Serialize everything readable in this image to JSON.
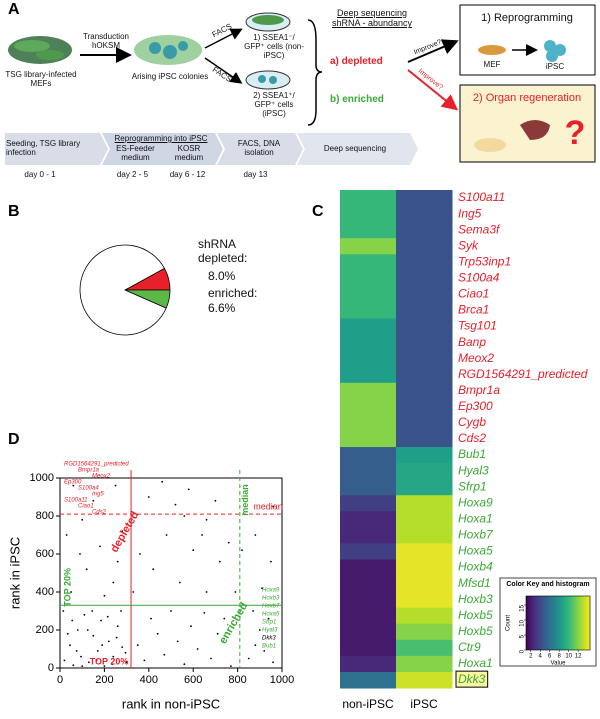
{
  "panel_labels": [
    "A",
    "B",
    "C",
    "D"
  ],
  "panel_a": {
    "mef_label": "TSG library-infected MEFs",
    "transduction": "Transduction hOKSM",
    "colonies": "Arising iPSC colonies",
    "facs": [
      "FACS",
      "FACS"
    ],
    "sorted": [
      "1) SSEA1⁻/ GFP⁺ cells (non-iPSC)",
      "2) SSEA1⁺/ GFP⁺ cells (iPSC)"
    ],
    "sequencing": "Deep sequencing shRNA - abundancy",
    "depleted": "a) depleted",
    "enriched": "b) enriched",
    "improve": [
      "Improve?",
      "Improve?"
    ],
    "reprogramming": "1) Reprogramming",
    "mef": "MEF",
    "ipsc": "iPSC",
    "regeneration": "2) Organ regeneration",
    "timeline": [
      "Seeding, TSG library infection",
      "Reprogramming into iPSC",
      "ES-Feeder medium",
      "KOSR medium",
      "FACS, DNA isolation",
      "Deep sequencing"
    ],
    "days": [
      "day 0 - 1",
      "day 2 - 5",
      "day 6 - 12",
      "day 13"
    ]
  },
  "chart_data": [
    {
      "type": "pie",
      "categories": [
        "shRNA depleted:",
        "enriched:",
        null
      ],
      "values": [
        8.0,
        6.6,
        85.4
      ],
      "value_labels": [
        "8.0%",
        "6.6%",
        null
      ],
      "colors": [
        "#e8202a",
        "#5cb947",
        "#ffffff"
      ]
    },
    {
      "type": "heatmap",
      "columns": [
        "non-iPSC",
        "iPSC"
      ],
      "rows": [
        "S100a11",
        "Ing5",
        "Sema3f",
        "Syk",
        "Trp53inp1",
        "S100a4",
        "Ciao1",
        "Brca1",
        "Tsg101",
        "Banp",
        "Meox2",
        "RGD1564291_predicted",
        "Bmpr1a",
        "Ep300",
        "Cygb",
        "Cds2",
        "Bub1",
        "Hyal3",
        "Sfrp1",
        "Hoxa9",
        "Hoxa1",
        "Hoxb7",
        "Hoxa5",
        "Hoxb4",
        "Mfsd1",
        "Hoxb3",
        "Hoxb5",
        "Hoxb5",
        "Ctr9",
        "Hoxa1",
        "Dkk3"
      ],
      "values": [
        [
          10,
          4.5
        ],
        [
          10,
          4.5
        ],
        [
          10,
          4.5
        ],
        [
          12,
          4.5
        ],
        [
          10,
          4.5
        ],
        [
          10,
          4.5
        ],
        [
          10,
          4.5
        ],
        [
          10,
          4.5
        ],
        [
          8.5,
          4.5
        ],
        [
          8.5,
          4.5
        ],
        [
          8.5,
          4.5
        ],
        [
          8.5,
          4.5
        ],
        [
          12,
          4.5
        ],
        [
          12,
          4.5
        ],
        [
          12,
          4.5
        ],
        [
          12,
          4.5
        ],
        [
          5,
          8.5
        ],
        [
          5,
          9
        ],
        [
          5,
          9
        ],
        [
          3.5,
          13
        ],
        [
          2.5,
          13
        ],
        [
          2.5,
          13
        ],
        [
          3.5,
          14
        ],
        [
          2,
          14
        ],
        [
          2,
          14
        ],
        [
          2,
          14
        ],
        [
          2,
          13
        ],
        [
          2,
          12
        ],
        [
          2,
          10.5
        ],
        [
          2.5,
          12
        ],
        [
          6,
          13.5
        ]
      ],
      "row_label_colors": [
        "#e8202a",
        "#e8202a",
        "#e8202a",
        "#e8202a",
        "#e8202a",
        "#e8202a",
        "#e8202a",
        "#e8202a",
        "#e8202a",
        "#e8202a",
        "#e8202a",
        "#e8202a",
        "#e8202a",
        "#e8202a",
        "#e8202a",
        "#e8202a",
        "#3aa935",
        "#3aa935",
        "#3aa935",
        "#3aa935",
        "#3aa935",
        "#3aa935",
        "#3aa935",
        "#3aa935",
        "#3aa935",
        "#3aa935",
        "#3aa935",
        "#3aa935",
        "#3aa935",
        "#3aa935",
        "#3aa935"
      ],
      "boxed_row": 30,
      "colormap": "viridis",
      "clim": [
        1,
        14.5
      ],
      "colorbar": {
        "title": "Color Key and histogram",
        "xlabel": "Value",
        "ylabel": "Count",
        "ticks": [
          2,
          4,
          6,
          8,
          10,
          12
        ],
        "count_lim": [
          0,
          18
        ],
        "count_ticks": [
          0,
          5,
          10,
          15
        ]
      }
    },
    {
      "type": "scatter",
      "xlabel": "rank in non-iPSC",
      "ylabel": "rank in iPSC",
      "xlim": [
        0,
        1000
      ],
      "ylim": [
        0,
        1000
      ],
      "xticks": [
        0,
        200,
        400,
        600,
        800,
        1000
      ],
      "yticks": [
        0,
        200,
        400,
        600,
        800,
        1000
      ],
      "series": [
        {
          "color": "#000000",
          "x": [
            20,
            45,
            60,
            80,
            95,
            110,
            130,
            150,
            170,
            185,
            200,
            220,
            240,
            260,
            280,
            300,
            15,
            35,
            55,
            75,
            100,
            125,
            145,
            165,
            190,
            215,
            235,
            255,
            275,
            295,
            350,
            380,
            410,
            440,
            470,
            500,
            530,
            560,
            590,
            620,
            650,
            680,
            710,
            740,
            770,
            360,
            420,
            480,
            540,
            600,
            660,
            720,
            400,
            460,
            520,
            580,
            640,
            700,
            760,
            50,
            120,
            180,
            240,
            280,
            90,
            200,
            150,
            60,
            250,
            850,
            880,
            900,
            920,
            940,
            960,
            870,
            910,
            950,
            880,
            960,
            840,
            30,
            100,
            260,
            330,
            790,
            820,
            660,
            560
          ],
          "values": [
            40,
            120,
            15,
            200,
            60,
            280,
            30,
            170,
            90,
            250,
            10,
            140,
            60,
            220,
            110,
            30,
            300,
            180,
            250,
            90,
            10,
            200,
            300,
            40,
            120,
            270,
            20,
            160,
            300,
            80,
            120,
            40,
            260,
            180,
            70,
            300,
            140,
            20,
            220,
            100,
            290,
            50,
            180,
            260,
            10,
            600,
            520,
            700,
            450,
            620,
            780,
            560,
            900,
            980,
            860,
            940,
            700,
            880,
            660,
            400,
            520,
            640,
            450,
            720,
            600,
            380,
            880,
            960,
            960,
            50,
            120,
            200,
            90,
            260,
            30,
            300,
            420,
            560,
            700,
            850,
            960,
            700,
            780,
            560,
            400,
            400,
            620,
            400,
            800
          ]
        }
      ],
      "reference_lines": [
        {
          "axis": "x",
          "value": 320,
          "color": "#e8202a",
          "dashed": false,
          "label": "TOP 20%"
        },
        {
          "axis": "y",
          "value": 810,
          "color": "#e8202a",
          "dashed": true,
          "label": "median"
        },
        {
          "axis": "y",
          "value": 330,
          "color": "#3aa935",
          "dashed": false,
          "label": "TOP 20%"
        },
        {
          "axis": "x",
          "value": 810,
          "color": "#3aa935",
          "dashed": true,
          "label": "median"
        }
      ],
      "group_labels": [
        {
          "text": "depleted",
          "color": "#e8202a"
        },
        {
          "text": "enriched",
          "color": "#3aa935"
        }
      ],
      "annotations": [
        {
          "text": "RGD1564291_predicted",
          "color": "#e8202a"
        },
        {
          "text": "Bmpr1a",
          "color": "#e8202a"
        },
        {
          "text": "Meox2",
          "color": "#e8202a"
        },
        {
          "text": "Ep300",
          "color": "#e8202a"
        },
        {
          "text": "S100a4",
          "color": "#e8202a"
        },
        {
          "text": "Ing5",
          "color": "#e8202a"
        },
        {
          "text": "S100a11",
          "color": "#e8202a"
        },
        {
          "text": "Ciao1",
          "color": "#e8202a"
        },
        {
          "text": "Cds2",
          "color": "#e8202a"
        },
        {
          "text": "Hoxa9",
          "color": "#3aa935"
        },
        {
          "text": "Hoxb3",
          "color": "#3aa935"
        },
        {
          "text": "Hoxb7",
          "color": "#3aa935"
        },
        {
          "text": "Hoxa5",
          "color": "#3aa935"
        },
        {
          "text": "Sfrp1",
          "color": "#3aa935"
        },
        {
          "text": "Hyal3",
          "color": "#3aa935"
        },
        {
          "text": "Dkk3",
          "color": "#000000"
        },
        {
          "text": "Bub1",
          "color": "#3aa935"
        }
      ]
    }
  ]
}
